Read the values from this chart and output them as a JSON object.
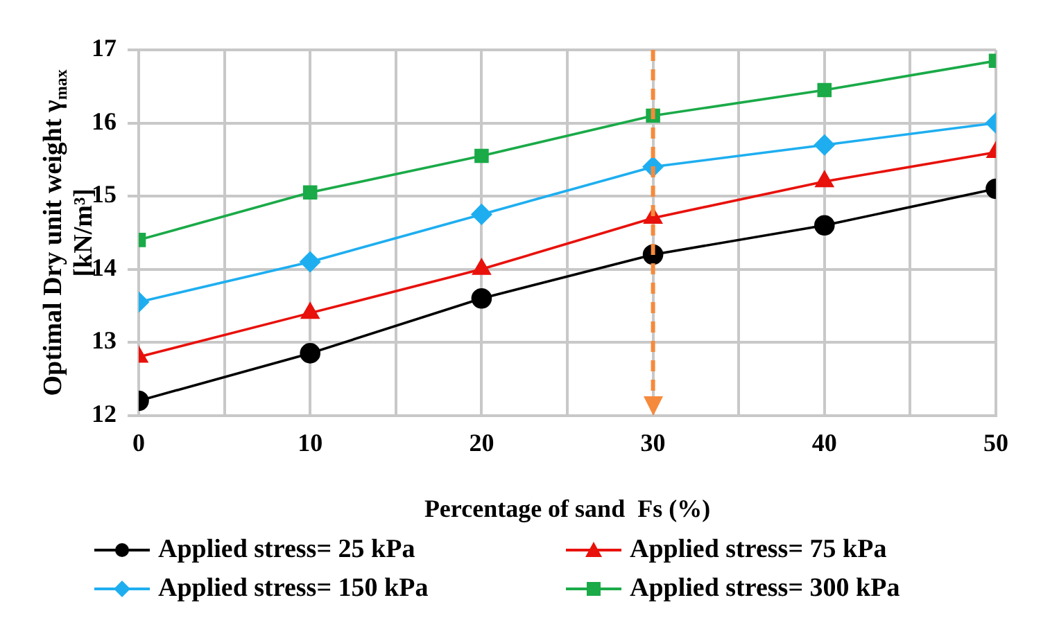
{
  "chart_data": {
    "type": "line",
    "xlabel": "Percentage of sand  Fs (%)",
    "ylabel": "Optimal Dry unit weight γ$_{max}$ [kN/m³]",
    "x": [
      0,
      10,
      20,
      30,
      40,
      50
    ],
    "series": [
      {
        "name": "Applied stress= 25 kPa",
        "color": "#000000",
        "marker": "circle",
        "values": [
          12.2,
          12.85,
          13.6,
          14.2,
          14.6,
          15.1
        ]
      },
      {
        "name": "Applied stress= 75 kPa",
        "color": "#e8110b",
        "marker": "triangle",
        "values": [
          12.8,
          13.4,
          14.0,
          14.7,
          15.2,
          15.6
        ]
      },
      {
        "name": "Applied stress= 150 kPa",
        "color": "#1eaef0",
        "marker": "diamond",
        "values": [
          13.55,
          14.1,
          14.75,
          15.4,
          15.7,
          16.0
        ]
      },
      {
        "name": "Applied stress= 300 kPa",
        "color": "#1aaa48",
        "marker": "square",
        "values": [
          14.4,
          15.05,
          15.55,
          16.1,
          16.45,
          16.85
        ]
      }
    ],
    "xlim": [
      0,
      50
    ],
    "xticks": [
      0,
      {
        "value": 5,
        "label": null
      },
      10,
      {
        "value": 15,
        "label": null
      },
      20,
      {
        "value": 25,
        "label": null
      },
      30,
      {
        "value": 35,
        "label": null
      },
      40,
      {
        "value": 45,
        "label": null
      },
      50
    ],
    "ylim": [
      12,
      17
    ],
    "yticks": [
      12,
      13,
      14,
      15,
      16,
      17
    ],
    "ref_lines": [
      {
        "axis": "x",
        "value": 30,
        "color": "#f58a3c",
        "line_style": "dashed"
      }
    ],
    "grid": true,
    "legend": "bottom",
    "line_style": "solid"
  }
}
